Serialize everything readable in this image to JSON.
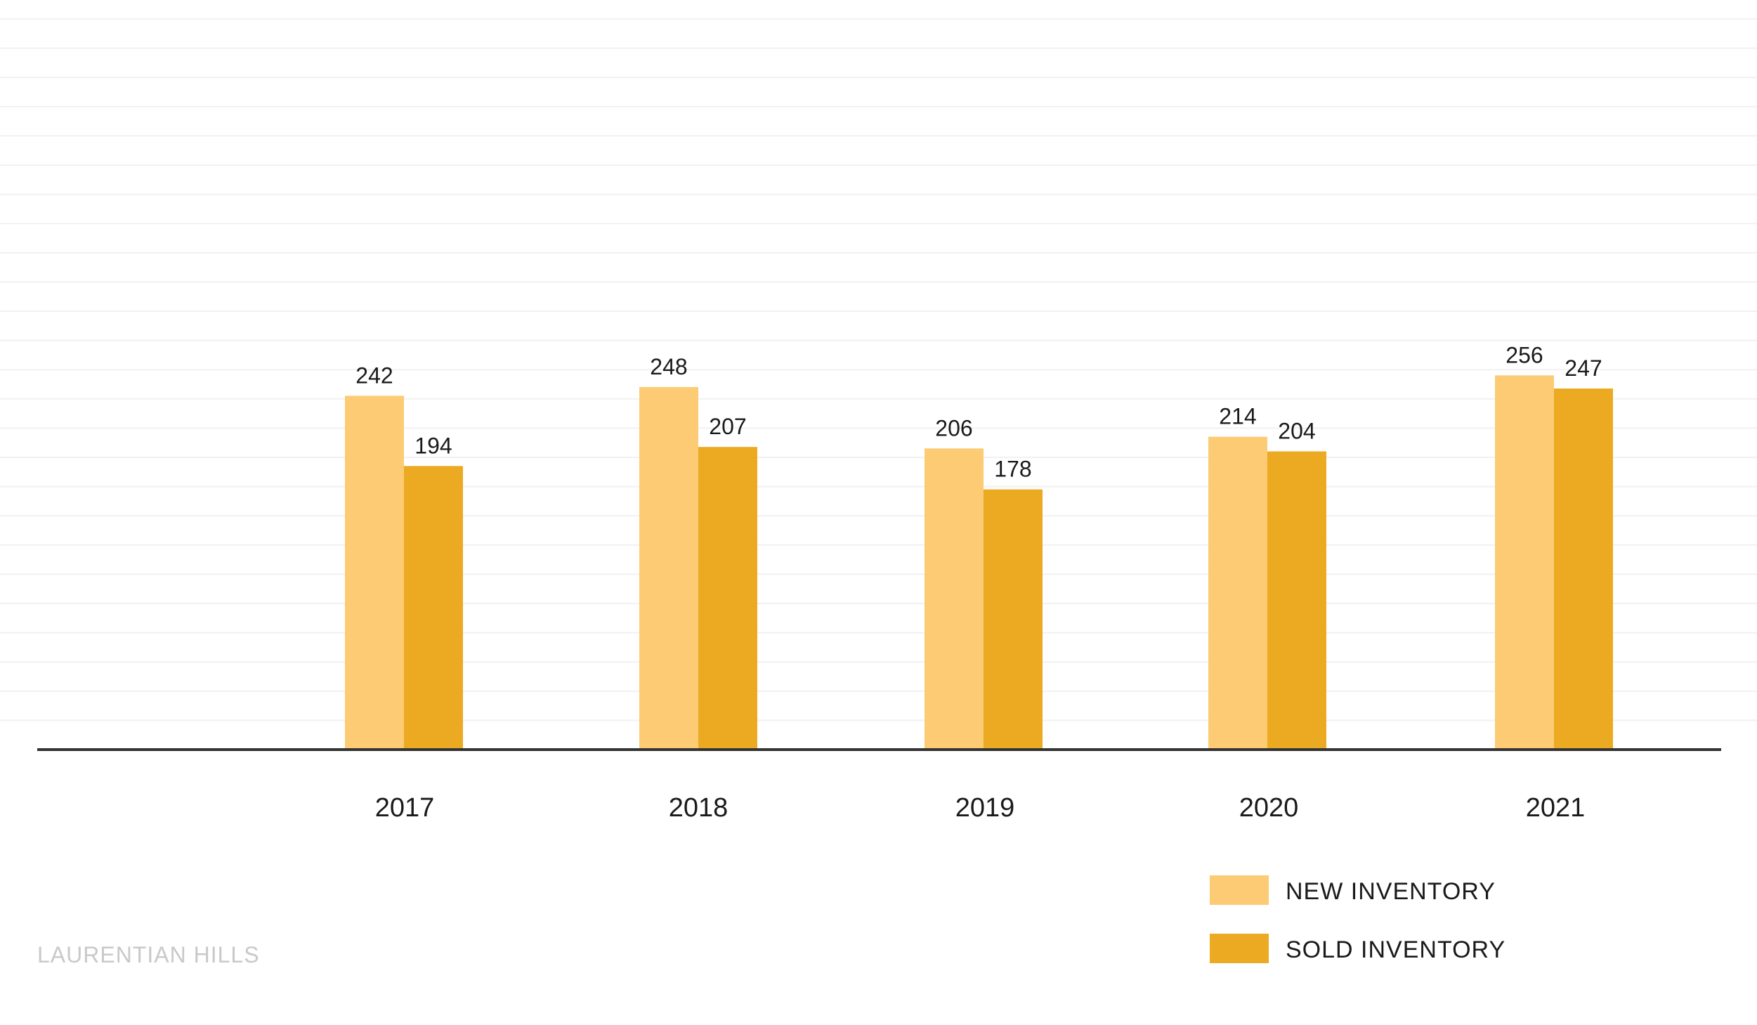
{
  "footer": {
    "text": "LAURENTIAN HILLS"
  },
  "colors": {
    "new": "#FCCB73",
    "sold": "#ECAA22",
    "axis": "#333333",
    "grid": "#f1f1f1"
  },
  "chart_data": {
    "type": "bar",
    "categories": [
      "2017",
      "2018",
      "2019",
      "2020",
      "2021"
    ],
    "series": [
      {
        "name": "NEW INVENTORY",
        "values": [
          242,
          248,
          206,
          214,
          256
        ]
      },
      {
        "name": "SOLD INVENTORY",
        "values": [
          194,
          207,
          178,
          204,
          247
        ]
      }
    ],
    "ylim": [
      0,
      500
    ],
    "grid": true,
    "legend": "bottom-right",
    "data_labels": true
  }
}
